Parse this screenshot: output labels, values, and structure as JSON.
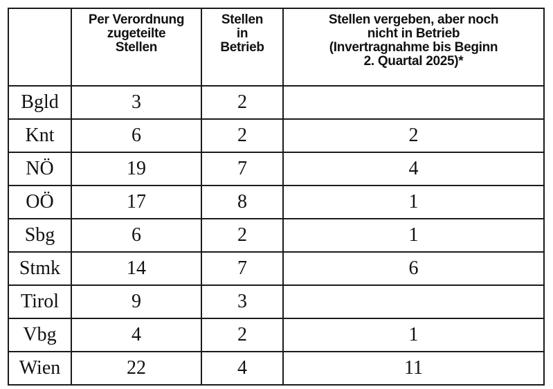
{
  "table": {
    "headers": [
      "",
      "Per Verordnung\nzugeteilte\nStellen",
      "Stellen\nin\nBetrieb",
      "Stellen vergeben, aber noch\nnicht in Betrieb\n(Invertragnahme bis Beginn\n2. Quartal 2025)*"
    ],
    "rows": [
      [
        "Bgld",
        "3",
        "2",
        ""
      ],
      [
        "Knt",
        "6",
        "2",
        "2"
      ],
      [
        "NÖ",
        "19",
        "7",
        "4"
      ],
      [
        "OÖ",
        "17",
        "8",
        "1"
      ],
      [
        "Sbg",
        "6",
        "2",
        "1"
      ],
      [
        "Stmk",
        "14",
        "7",
        "6"
      ],
      [
        "Tirol",
        "9",
        "3",
        ""
      ],
      [
        "Vbg",
        "4",
        "2",
        "1"
      ],
      [
        "Wien",
        "22",
        "4",
        "11"
      ]
    ]
  }
}
